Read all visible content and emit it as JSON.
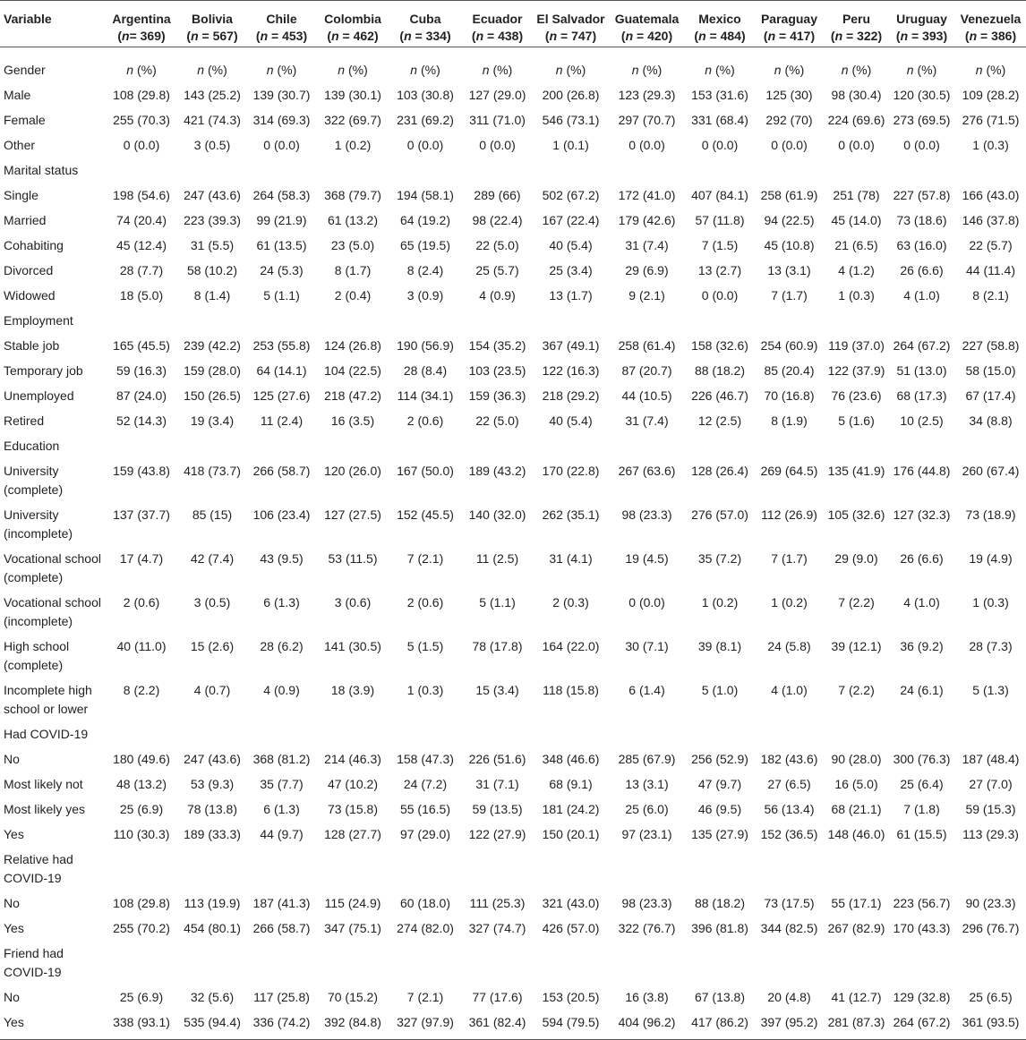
{
  "table": {
    "variable_header": "Variable",
    "columns": [
      {
        "name": "Argentina",
        "n": "(n= 369)"
      },
      {
        "name": "Bolivia",
        "n": "(n = 567)"
      },
      {
        "name": "Chile",
        "n": "(n = 453)"
      },
      {
        "name": "Colombia",
        "n": "(n = 462)"
      },
      {
        "name": "Cuba",
        "n": "(n = 334)"
      },
      {
        "name": "Ecuador",
        "n": "(n = 438)"
      },
      {
        "name": "El Salvador",
        "n": "(n = 747)"
      },
      {
        "name": "Guatemala",
        "n": "(n = 420)"
      },
      {
        "name": "Mexico",
        "n": "(n = 484)"
      },
      {
        "name": "Paraguay",
        "n": "(n = 417)"
      },
      {
        "name": "Peru",
        "n": "(n = 322)"
      },
      {
        "name": "Uruguay",
        "n": "(n = 393)"
      },
      {
        "name": "Venezuela",
        "n": "(n = 386)"
      }
    ],
    "rows": [
      {
        "label": "Gender",
        "cells": [
          "n (%)",
          "n (%)",
          "n (%)",
          "n (%)",
          "n (%)",
          "n (%)",
          "n (%)",
          "n (%)",
          "n (%)",
          "n (%)",
          "n (%)",
          "n (%)",
          "n (%)"
        ],
        "kind": "np"
      },
      {
        "label": "Male",
        "cells": [
          "108 (29.8)",
          "143 (25.2)",
          "139 (30.7)",
          "139 (30.1)",
          "103 (30.8)",
          "127 (29.0)",
          "200 (26.8)",
          "123 (29.3)",
          "153 (31.6)",
          "125 (30)",
          "98 (30.4)",
          "120 (30.5)",
          "109 (28.2)"
        ]
      },
      {
        "label": "Female",
        "cells": [
          "255 (70.3)",
          "421 (74.3)",
          "314 (69.3)",
          "322 (69.7)",
          "231 (69.2)",
          "311 (71.0)",
          "546 (73.1)",
          "297 (70.7)",
          "331 (68.4)",
          "292 (70)",
          "224 (69.6)",
          "273 (69.5)",
          "276 (71.5)"
        ]
      },
      {
        "label": "Other",
        "cells": [
          "0 (0.0)",
          "3 (0.5)",
          "0 (0.0)",
          "1 (0.2)",
          "0 (0.0)",
          "0 (0.0)",
          "1 (0.1)",
          "0 (0.0)",
          "0 (0.0)",
          "0 (0.0)",
          "0 (0.0)",
          "0 (0.0)",
          "1 (0.3)"
        ]
      },
      {
        "label": "Marital status",
        "cells": [
          "",
          "",
          "",
          "",
          "",
          "",
          "",
          "",
          "",
          "",
          "",
          "",
          ""
        ]
      },
      {
        "label": "Single",
        "cells": [
          "198 (54.6)",
          "247 (43.6)",
          "264 (58.3)",
          "368 (79.7)",
          "194 (58.1)",
          "289 (66)",
          "502 (67.2)",
          "172 (41.0)",
          "407 (84.1)",
          "258 (61.9)",
          "251 (78)",
          "227 (57.8)",
          "166 (43.0)"
        ]
      },
      {
        "label": "Married",
        "cells": [
          "74 (20.4)",
          "223 (39.3)",
          "99 (21.9)",
          "61 (13.2)",
          "64 (19.2)",
          "98 (22.4)",
          "167 (22.4)",
          "179 (42.6)",
          "57 (11.8)",
          "94 (22.5)",
          "45 (14.0)",
          "73 (18.6)",
          "146 (37.8)"
        ]
      },
      {
        "label": "Cohabiting",
        "cells": [
          "45 (12.4)",
          "31 (5.5)",
          "61 (13.5)",
          "23 (5.0)",
          "65 (19.5)",
          "22 (5.0)",
          "40 (5.4)",
          "31 (7.4)",
          "7 (1.5)",
          "45 (10.8)",
          "21 (6.5)",
          "63 (16.0)",
          "22 (5.7)"
        ]
      },
      {
        "label": "Divorced",
        "cells": [
          "28 (7.7)",
          "58 (10.2)",
          "24 (5.3)",
          "8 (1.7)",
          "8 (2.4)",
          "25 (5.7)",
          "25 (3.4)",
          "29 (6.9)",
          "13 (2.7)",
          "13 (3.1)",
          "4 (1.2)",
          "26 (6.6)",
          "44 (11.4)"
        ]
      },
      {
        "label": "Widowed",
        "cells": [
          "18 (5.0)",
          "8 (1.4)",
          "5 (1.1)",
          "2 (0.4)",
          "3 (0.9)",
          "4 (0.9)",
          "13 (1.7)",
          "9 (2.1)",
          "0 (0.0)",
          "7 (1.7)",
          "1 (0.3)",
          "4 (1.0)",
          "8 (2.1)"
        ]
      },
      {
        "label": "Employment",
        "cells": [
          "",
          "",
          "",
          "",
          "",
          "",
          "",
          "",
          "",
          "",
          "",
          "",
          ""
        ]
      },
      {
        "label": "Stable job",
        "cells": [
          "165 (45.5)",
          "239 (42.2)",
          "253 (55.8)",
          "124 (26.8)",
          "190 (56.9)",
          "154 (35.2)",
          "367 (49.1)",
          "258 (61.4)",
          "158 (32.6)",
          "254 (60.9)",
          "119 (37.0)",
          "264 (67.2)",
          "227 (58.8)"
        ]
      },
      {
        "label": "Temporary job",
        "cells": [
          "59 (16.3)",
          "159 (28.0)",
          "64 (14.1)",
          "104 (22.5)",
          "28 (8.4)",
          "103 (23.5)",
          "122 (16.3)",
          "87 (20.7)",
          "88 (18.2)",
          "85 (20.4)",
          "122 (37.9)",
          "51 (13.0)",
          "58 (15.0)"
        ]
      },
      {
        "label": "Unemployed",
        "cells": [
          "87 (24.0)",
          "150 (26.5)",
          "125 (27.6)",
          "218 (47.2)",
          "114 (34.1)",
          "159 (36.3)",
          "218 (29.2)",
          "44 (10.5)",
          "226 (46.7)",
          "70 (16.8)",
          "76 (23.6)",
          "68 (17.3)",
          "67 (17.4)"
        ]
      },
      {
        "label": "Retired",
        "cells": [
          "52 (14.3)",
          "19 (3.4)",
          "11 (2.4)",
          "16 (3.5)",
          "2 (0.6)",
          "22 (5.0)",
          "40 (5.4)",
          "31 (7.4)",
          "12 (2.5)",
          "8 (1.9)",
          "5 (1.6)",
          "10 (2.5)",
          "34 (8.8)"
        ]
      },
      {
        "label": "Education",
        "cells": [
          "",
          "",
          "",
          "",
          "",
          "",
          "",
          "",
          "",
          "",
          "",
          "",
          ""
        ]
      },
      {
        "label": "University (complete)",
        "cells": [
          "159 (43.8)",
          "418 (73.7)",
          "266 (58.7)",
          "120 (26.0)",
          "167 (50.0)",
          "189 (43.2)",
          "170 (22.8)",
          "267 (63.6)",
          "128 (26.4)",
          "269 (64.5)",
          "135 (41.9)",
          "176 (44.8)",
          "260 (67.4)"
        ]
      },
      {
        "label": "University (incomplete)",
        "cells": [
          "137 (37.7)",
          "85 (15)",
          "106 (23.4)",
          "127 (27.5)",
          "152 (45.5)",
          "140 (32.0)",
          "262 (35.1)",
          "98 (23.3)",
          "276 (57.0)",
          "112 (26.9)",
          "105 (32.6)",
          "127 (32.3)",
          "73 (18.9)"
        ]
      },
      {
        "label": "Vocational school (complete)",
        "cells": [
          "17 (4.7)",
          "42 (7.4)",
          "43 (9.5)",
          "53 (11.5)",
          "7 (2.1)",
          "11 (2.5)",
          "31 (4.1)",
          "19 (4.5)",
          "35 (7.2)",
          "7 (1.7)",
          "29 (9.0)",
          "26 (6.6)",
          "19 (4.9)"
        ]
      },
      {
        "label": "Vocational school (incomplete)",
        "cells": [
          "2 (0.6)",
          "3 (0.5)",
          "6 (1.3)",
          "3 (0.6)",
          "2 (0.6)",
          "5 (1.1)",
          "2 (0.3)",
          "0 (0.0)",
          "1 (0.2)",
          "1 (0.2)",
          "7 (2.2)",
          "4 (1.0)",
          "1 (0.3)"
        ]
      },
      {
        "label": "High school (complete)",
        "cells": [
          "40 (11.0)",
          "15 (2.6)",
          "28 (6.2)",
          "141 (30.5)",
          "5 (1.5)",
          "78 (17.8)",
          "164 (22.0)",
          "30 (7.1)",
          "39 (8.1)",
          "24 (5.8)",
          "39 (12.1)",
          "36 (9.2)",
          "28 (7.3)"
        ]
      },
      {
        "label": "Incomplete high school or lower",
        "cells": [
          "8 (2.2)",
          "4 (0.7)",
          "4 (0.9)",
          "18 (3.9)",
          "1 (0.3)",
          "15 (3.4)",
          "118 (15.8)",
          "6 (1.4)",
          "5 (1.0)",
          "4 (1.0)",
          "7 (2.2)",
          "24 (6.1)",
          "5 (1.3)"
        ]
      },
      {
        "label": "Had COVID-19",
        "cells": [
          "",
          "",
          "",
          "",
          "",
          "",
          "",
          "",
          "",
          "",
          "",
          "",
          ""
        ]
      },
      {
        "label": "No",
        "cells": [
          "180 (49.6)",
          "247 (43.6)",
          "368 (81.2)",
          "214 (46.3)",
          "158 (47.3)",
          "226 (51.6)",
          "348 (46.6)",
          "285 (67.9)",
          "256 (52.9)",
          "182 (43.6)",
          "90 (28.0)",
          "300 (76.3)",
          "187 (48.4)"
        ]
      },
      {
        "label": "Most likely not",
        "cells": [
          "48 (13.2)",
          "53 (9.3)",
          "35 (7.7)",
          "47 (10.2)",
          "24 (7.2)",
          "31 (7.1)",
          "68 (9.1)",
          "13 (3.1)",
          "47 (9.7)",
          "27 (6.5)",
          "16 (5.0)",
          "25 (6.4)",
          "27 (7.0)"
        ]
      },
      {
        "label": "Most likely yes",
        "cells": [
          "25 (6.9)",
          "78 (13.8)",
          "6 (1.3)",
          "73 (15.8)",
          "55 (16.5)",
          "59 (13.5)",
          "181 (24.2)",
          "25 (6.0)",
          "46 (9.5)",
          "56 (13.4)",
          "68 (21.1)",
          "7 (1.8)",
          "59 (15.3)"
        ]
      },
      {
        "label": "Yes",
        "cells": [
          "110 (30.3)",
          "189 (33.3)",
          "44 (9.7)",
          "128 (27.7)",
          "97 (29.0)",
          "122 (27.9)",
          "150 (20.1)",
          "97 (23.1)",
          "135 (27.9)",
          "152 (36.5)",
          "148 (46.0)",
          "61 (15.5)",
          "113 (29.3)"
        ]
      },
      {
        "label": "Relative had COVID-19",
        "cells": [
          "",
          "",
          "",
          "",
          "",
          "",
          "",
          "",
          "",
          "",
          "",
          "",
          ""
        ]
      },
      {
        "label": "No",
        "cells": [
          "108 (29.8)",
          "113 (19.9)",
          "187 (41.3)",
          "115 (24.9)",
          "60 (18.0)",
          "111 (25.3)",
          "321 (43.0)",
          "98 (23.3)",
          "88 (18.2)",
          "73 (17.5)",
          "55 (17.1)",
          "223 (56.7)",
          "90 (23.3)"
        ]
      },
      {
        "label": "Yes",
        "cells": [
          "255 (70.2)",
          "454 (80.1)",
          "266 (58.7)",
          "347 (75.1)",
          "274 (82.0)",
          "327 (74.7)",
          "426 (57.0)",
          "322 (76.7)",
          "396 (81.8)",
          "344 (82.5)",
          "267 (82.9)",
          "170 (43.3)",
          "296 (76.7)"
        ]
      },
      {
        "label": "Friend had COVID-19",
        "cells": [
          "",
          "",
          "",
          "",
          "",
          "",
          "",
          "",
          "",
          "",
          "",
          "",
          ""
        ]
      },
      {
        "label": "No",
        "cells": [
          "25 (6.9)",
          "32 (5.6)",
          "117 (25.8)",
          "70 (15.2)",
          "7 (2.1)",
          "77 (17.6)",
          "153 (20.5)",
          "16 (3.8)",
          "67 (13.8)",
          "20 (4.8)",
          "41 (12.7)",
          "129 (32.8)",
          "25 (6.5)"
        ]
      },
      {
        "label": "Yes",
        "cells": [
          "338 (93.1)",
          "535 (94.4)",
          "336 (74.2)",
          "392 (84.8)",
          "327 (97.9)",
          "361 (82.4)",
          "594 (79.5)",
          "404 (96.2)",
          "417 (86.2)",
          "397 (95.2)",
          "281 (87.3)",
          "264 (67.2)",
          "361 (93.5)"
        ]
      }
    ]
  }
}
